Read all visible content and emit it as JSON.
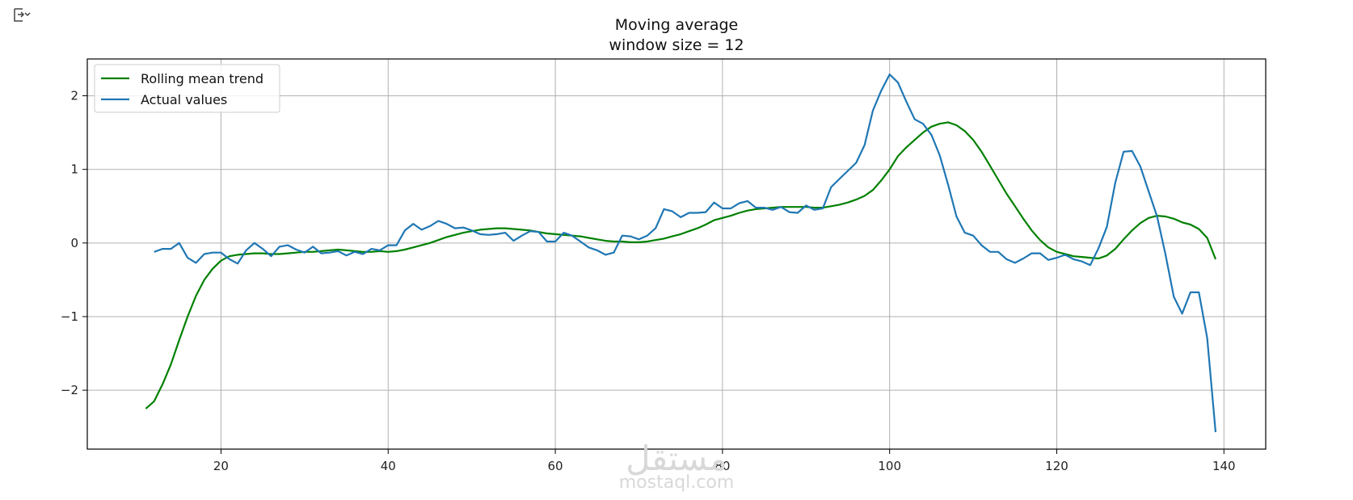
{
  "toolbar": {
    "output_icon": "output-toggle-icon"
  },
  "watermark": {
    "arabic": "مستقل",
    "latin": "mostaql.com"
  },
  "chart_data": {
    "type": "line",
    "title": "Moving average",
    "subtitle": "window size = 12",
    "xlabel": "",
    "ylabel": "",
    "xlim": [
      4,
      145
    ],
    "ylim": [
      -2.8,
      2.5
    ],
    "xticks": [
      20,
      40,
      60,
      80,
      100,
      120,
      140
    ],
    "yticks": [
      2,
      1,
      0,
      -1,
      -2
    ],
    "ytick_labels": [
      "2",
      "1",
      "0",
      "−1",
      "−2"
    ],
    "grid": true,
    "legend_position": "upper-left",
    "series": [
      {
        "name": "Rolling mean trend",
        "color": "#008000",
        "x": [
          11,
          12,
          13,
          14,
          15,
          16,
          17,
          18,
          19,
          20,
          21,
          22,
          23,
          24,
          25,
          26,
          27,
          28,
          29,
          30,
          31,
          32,
          33,
          34,
          35,
          36,
          37,
          38,
          39,
          40,
          41,
          42,
          43,
          44,
          45,
          46,
          47,
          48,
          49,
          50,
          51,
          52,
          53,
          54,
          55,
          56,
          57,
          58,
          59,
          60,
          61,
          62,
          63,
          64,
          65,
          66,
          67,
          68,
          69,
          70,
          71,
          72,
          73,
          74,
          75,
          76,
          77,
          78,
          79,
          80,
          81,
          82,
          83,
          84,
          85,
          86,
          87,
          88,
          89,
          90,
          91,
          92,
          93,
          94,
          95,
          96,
          97,
          98,
          99,
          100,
          101,
          102,
          103,
          104,
          105,
          106,
          107,
          108,
          109,
          110,
          111,
          112,
          113,
          114,
          115,
          116,
          117,
          118,
          119,
          120,
          121,
          122,
          123,
          124,
          125,
          126,
          127,
          128,
          129,
          130,
          131,
          132,
          133,
          134,
          135,
          136,
          137,
          138,
          139
        ],
        "y": [
          -2.25,
          -2.15,
          -1.92,
          -1.65,
          -1.32,
          -1.0,
          -0.72,
          -0.5,
          -0.35,
          -0.24,
          -0.18,
          -0.16,
          -0.15,
          -0.14,
          -0.14,
          -0.15,
          -0.15,
          -0.14,
          -0.13,
          -0.12,
          -0.12,
          -0.11,
          -0.1,
          -0.09,
          -0.1,
          -0.11,
          -0.12,
          -0.12,
          -0.11,
          -0.12,
          -0.11,
          -0.09,
          -0.06,
          -0.03,
          0.0,
          0.04,
          0.08,
          0.11,
          0.14,
          0.16,
          0.18,
          0.19,
          0.2,
          0.2,
          0.19,
          0.18,
          0.17,
          0.15,
          0.13,
          0.12,
          0.11,
          0.1,
          0.09,
          0.07,
          0.05,
          0.03,
          0.02,
          0.02,
          0.01,
          0.01,
          0.02,
          0.04,
          0.06,
          0.09,
          0.12,
          0.16,
          0.2,
          0.25,
          0.31,
          0.34,
          0.37,
          0.41,
          0.44,
          0.46,
          0.47,
          0.48,
          0.49,
          0.49,
          0.49,
          0.49,
          0.48,
          0.48,
          0.5,
          0.52,
          0.55,
          0.59,
          0.64,
          0.72,
          0.85,
          1.0,
          1.18,
          1.3,
          1.4,
          1.5,
          1.58,
          1.62,
          1.64,
          1.6,
          1.52,
          1.4,
          1.24,
          1.05,
          0.86,
          0.67,
          0.5,
          0.33,
          0.17,
          0.04,
          -0.06,
          -0.12,
          -0.15,
          -0.18,
          -0.19,
          -0.2,
          -0.21,
          -0.17,
          -0.08,
          0.05,
          0.17,
          0.27,
          0.34,
          0.37,
          0.36,
          0.33,
          0.28,
          0.25,
          0.19,
          0.07,
          -0.22
        ]
      },
      {
        "name": "Actual values",
        "color": "#1f77b4",
        "x": [
          12,
          13,
          14,
          15,
          16,
          17,
          18,
          19,
          20,
          21,
          22,
          23,
          24,
          25,
          26,
          27,
          28,
          29,
          30,
          31,
          32,
          33,
          34,
          35,
          36,
          37,
          38,
          39,
          40,
          41,
          42,
          43,
          44,
          45,
          46,
          47,
          48,
          49,
          50,
          51,
          52,
          53,
          54,
          55,
          56,
          57,
          58,
          59,
          60,
          61,
          62,
          63,
          64,
          65,
          66,
          67,
          68,
          69,
          70,
          71,
          72,
          73,
          74,
          75,
          76,
          77,
          78,
          79,
          80,
          81,
          82,
          83,
          84,
          85,
          86,
          87,
          88,
          89,
          90,
          91,
          92,
          93,
          94,
          95,
          96,
          97,
          98,
          99,
          100,
          101,
          102,
          103,
          104,
          105,
          106,
          107,
          108,
          109,
          110,
          111,
          112,
          113,
          114,
          115,
          116,
          117,
          118,
          119,
          120,
          121,
          122,
          123,
          124,
          125,
          126,
          127,
          128,
          129,
          130,
          131,
          132,
          133,
          134,
          135,
          136,
          137,
          138,
          139
        ],
        "y": [
          -0.12,
          -0.08,
          -0.08,
          0.0,
          -0.2,
          -0.27,
          -0.15,
          -0.13,
          -0.13,
          -0.22,
          -0.28,
          -0.1,
          0.0,
          -0.08,
          -0.18,
          -0.05,
          -0.03,
          -0.09,
          -0.13,
          -0.05,
          -0.14,
          -0.13,
          -0.11,
          -0.17,
          -0.12,
          -0.15,
          -0.08,
          -0.1,
          -0.03,
          -0.03,
          0.17,
          0.26,
          0.18,
          0.23,
          0.3,
          0.26,
          0.2,
          0.21,
          0.17,
          0.12,
          0.11,
          0.12,
          0.14,
          0.03,
          0.1,
          0.16,
          0.15,
          0.02,
          0.02,
          0.14,
          0.1,
          0.02,
          -0.06,
          -0.1,
          -0.16,
          -0.13,
          0.1,
          0.09,
          0.05,
          0.1,
          0.2,
          0.46,
          0.43,
          0.35,
          0.41,
          0.41,
          0.42,
          0.55,
          0.47,
          0.47,
          0.54,
          0.57,
          0.48,
          0.48,
          0.45,
          0.49,
          0.42,
          0.41,
          0.51,
          0.45,
          0.47,
          0.76,
          0.87,
          0.98,
          1.09,
          1.33,
          1.8,
          2.07,
          2.29,
          2.18,
          1.92,
          1.68,
          1.62,
          1.47,
          1.19,
          0.79,
          0.36,
          0.14,
          0.1,
          -0.03,
          -0.12,
          -0.12,
          -0.22,
          -0.27,
          -0.21,
          -0.14,
          -0.14,
          -0.23,
          -0.2,
          -0.16,
          -0.22,
          -0.25,
          -0.3,
          -0.07,
          0.22,
          0.82,
          1.24,
          1.25,
          1.04,
          0.7,
          0.36,
          -0.15,
          -0.73,
          -0.96,
          -0.67,
          -0.67,
          -1.29,
          -2.57
        ]
      }
    ]
  }
}
